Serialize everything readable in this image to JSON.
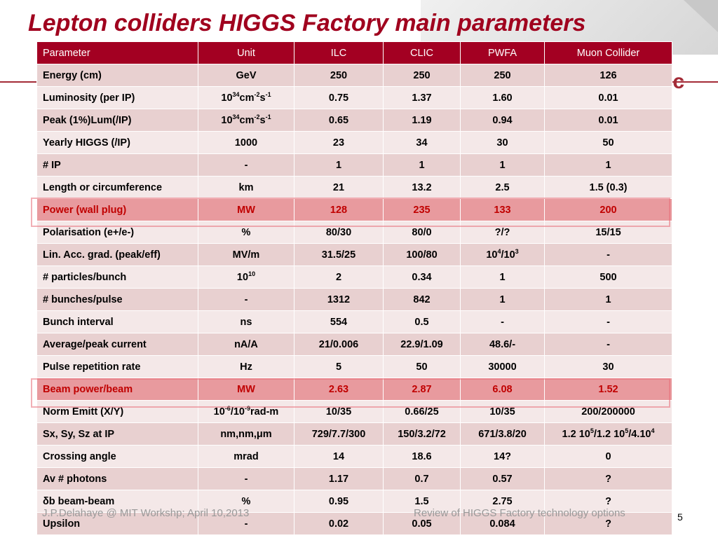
{
  "slide": {
    "title": "Lepton colliders HIGGS Factory main parameters",
    "logo_fragment": "c",
    "footer_left": "J.P.Delahaye @ MIT Workshp; April 10,2013",
    "footer_right": "Review of HIGGS Factory technology options",
    "page_number": "5"
  },
  "colors": {
    "title": "#a0001e",
    "header_bg": "#a30022",
    "row_odd": "#e8d0d0",
    "row_even": "#f4e8e8",
    "highlight_bg": "#e89a9e",
    "highlight_text": "#c00000"
  },
  "table": {
    "headers": [
      "Parameter",
      "Unit",
      "ILC",
      "CLIC",
      "PWFA",
      "Muon Collider"
    ],
    "rows": [
      [
        "Energy (cm)",
        "GeV",
        "250",
        "250",
        "250",
        "126"
      ],
      [
        "Luminosity (per IP)",
        "10^34cm^-2s^-1",
        "0.75",
        "1.37",
        "1.60",
        "0.01"
      ],
      [
        "Peak (1%)Lum(/IP)",
        "10^34cm^-2s^-1",
        "0.65",
        "1.19",
        "0.94",
        "0.01"
      ],
      [
        "Yearly HIGGS (/IP)",
        "1000",
        "23",
        "34",
        "30",
        "50"
      ],
      [
        "# IP",
        "-",
        "1",
        "1",
        "1",
        "1"
      ],
      [
        "Length or circumference",
        "km",
        "21",
        "13.2",
        "2.5",
        "1.5 (0.3)"
      ],
      [
        "Power (wall plug)",
        "MW",
        "128",
        "235",
        "133",
        "200"
      ],
      [
        "Polarisation (e+/e-)",
        "%",
        "80/30",
        "80/0",
        "?/?",
        "15/15"
      ],
      [
        "Lin. Acc. grad. (peak/eff)",
        "MV/m",
        "31.5/25",
        "100/80",
        "10^4/10^3",
        "-"
      ],
      [
        "# particles/bunch",
        "10^10",
        "2",
        "0.34",
        "1",
        "500"
      ],
      [
        "# bunches/pulse",
        "-",
        "1312",
        "842",
        "1",
        "1"
      ],
      [
        "Bunch interval",
        "ns",
        "554",
        "0.5",
        "-",
        "-"
      ],
      [
        "Average/peak current",
        "nA/A",
        "21/0.006",
        "22.9/1.09",
        "48.6/-",
        "-"
      ],
      [
        "Pulse repetition rate",
        "Hz",
        "5",
        "50",
        "30000",
        "30"
      ],
      [
        "Beam power/beam",
        "MW",
        "2.63",
        "2.87",
        "6.08",
        "1.52"
      ],
      [
        "Norm Emitt (X/Y)",
        "10^-6/10^-9rad-m",
        "10/35",
        "0.66/25",
        "10/35",
        "200/200000"
      ],
      [
        "Sx, Sy, Sz at IP",
        "nm,nm,μm",
        "729/7.7/300",
        "150/3.2/72",
        "671/3.8/20",
        "1.2 10^5/1.2 10^5/4.10^4"
      ],
      [
        "Crossing angle",
        "mrad",
        "14",
        "18.6",
        "14?",
        "0"
      ],
      [
        "Av # photons",
        "-",
        "1.17",
        "0.7",
        "0.57",
        "?"
      ],
      [
        "δb beam-beam",
        "%",
        "0.95",
        "1.5",
        "2.75",
        "?"
      ],
      [
        "Upsilon",
        "-",
        "0.02",
        "0.05",
        "0.084",
        "?"
      ]
    ],
    "highlighted_rows": [
      6,
      14
    ]
  }
}
